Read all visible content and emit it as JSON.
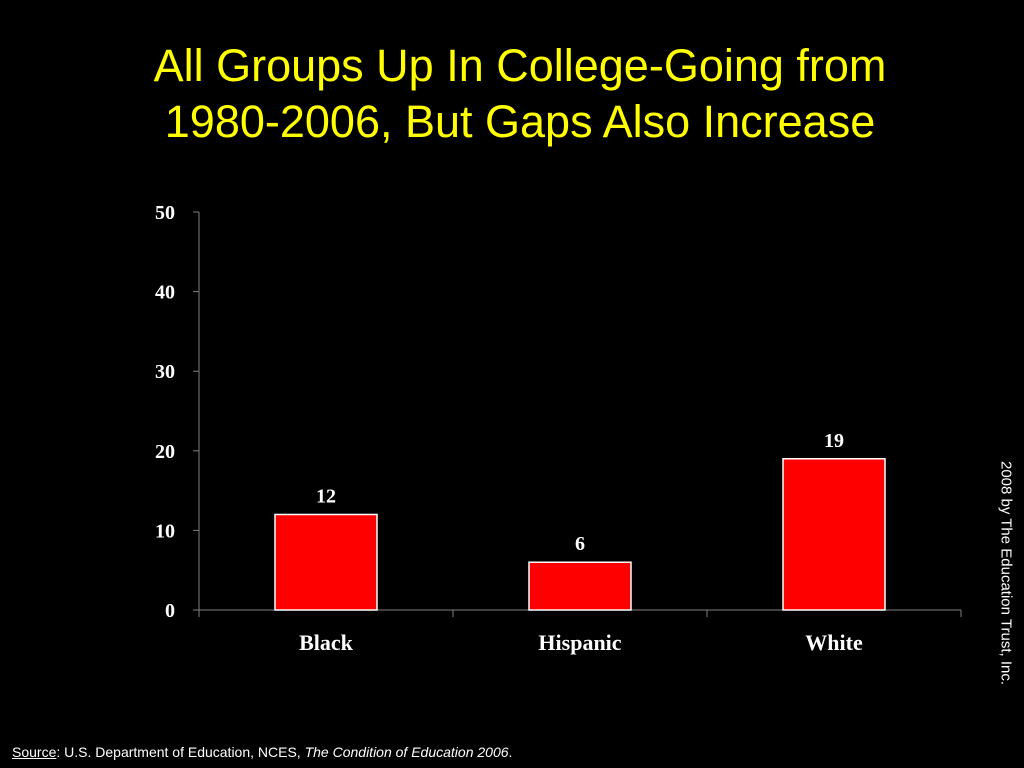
{
  "slide": {
    "title_line1": "All Groups Up In College-Going from",
    "title_line2": "1980-2006, But Gaps Also Increase",
    "copyright": "2008 by The Education Trust, Inc.",
    "source_label": "Source",
    "source_text": ":  U.S. Department of Education, NCES, ",
    "source_publication": "The Condition of Education 2006",
    "source_end": ".",
    "colors": {
      "background": "#000000",
      "title": "#ffff00",
      "bar_fill": "#ff0000",
      "bar_stroke": "#ffffff",
      "text": "#ffffff"
    }
  },
  "chart_data": {
    "type": "bar",
    "title": "",
    "xlabel": "",
    "ylabel": "",
    "categories": [
      "Black",
      "Hispanic",
      "White"
    ],
    "values": [
      12,
      6,
      19
    ],
    "data_labels": [
      "12",
      "6",
      "19"
    ],
    "ylim": [
      0,
      50
    ],
    "yticks": [
      0,
      10,
      20,
      30,
      40,
      50
    ],
    "ytick_labels": [
      "0",
      "10",
      "20",
      "30",
      "40",
      "50"
    ],
    "grid": false,
    "legend": "none"
  }
}
